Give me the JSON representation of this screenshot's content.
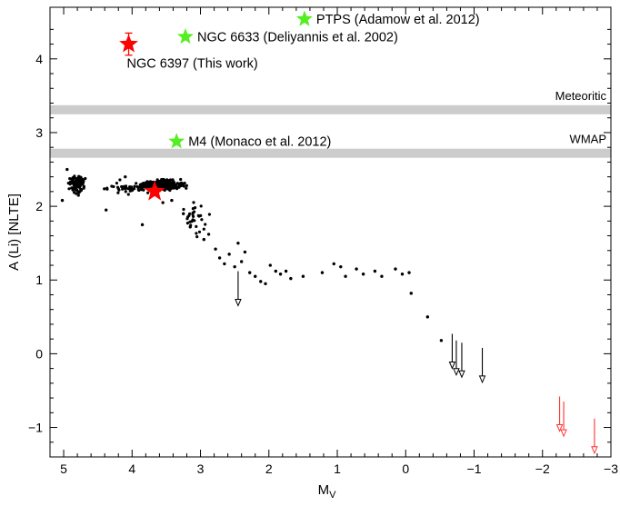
{
  "chart_data": {
    "type": "scatter",
    "xlabel": "M",
    "xlabel_sub": "V",
    "ylabel": "A (Li) [NLTE]",
    "xlim": [
      5.2,
      -3.0
    ],
    "ylim": [
      -1.4,
      4.7
    ],
    "x_inverted": true,
    "x_ticks": [
      5,
      4,
      3,
      2,
      1,
      0,
      -1,
      -2,
      -3
    ],
    "x_tick_labels": [
      "5",
      "4",
      "3",
      "2",
      "1",
      "0",
      "−1",
      "−2",
      "−3"
    ],
    "y_ticks": [
      -1,
      0,
      1,
      2,
      3,
      4
    ],
    "y_tick_labels": [
      "−1",
      "0",
      "1",
      "2",
      "3",
      "4"
    ],
    "reference_bands": [
      {
        "label": "Meteoritic",
        "y": 3.31,
        "color": "#cccccc"
      },
      {
        "label": "WMAP",
        "y": 2.72,
        "color": "#cccccc"
      }
    ],
    "highlight_points": [
      {
        "label": "NGC 6397 (This work)",
        "x": 4.05,
        "y": 4.2,
        "y_err": 0.15,
        "color": "#ff0000"
      },
      {
        "label": "NGC 6633 (Deliyannis et al. 2002)",
        "x": 3.22,
        "y": 4.3,
        "color": "#55ee22"
      },
      {
        "label": "PTPS (Adamow et al. 2012)",
        "x": 1.48,
        "y": 4.54,
        "color": "#55ee22"
      },
      {
        "label": "M4 (Monaco et al. 2012)",
        "x": 3.35,
        "y": 2.88,
        "color": "#55ee22"
      }
    ],
    "mean_point": {
      "x": 3.67,
      "y": 2.2,
      "color": "#ff0000"
    },
    "upper_limits": [
      {
        "x": 2.45,
        "y": 1.12,
        "color": "#000000"
      },
      {
        "x": -0.68,
        "y": 0.27,
        "color": "#000000"
      },
      {
        "x": -0.74,
        "y": 0.18,
        "color": "#000000"
      },
      {
        "x": -0.82,
        "y": 0.15,
        "color": "#000000"
      },
      {
        "x": -1.12,
        "y": 0.08,
        "color": "#000000"
      },
      {
        "x": -2.25,
        "y": -0.58,
        "color": "#ff3333"
      },
      {
        "x": -2.31,
        "y": -0.65,
        "color": "#ff3333"
      },
      {
        "x": -2.76,
        "y": -0.88,
        "color": "#ff3333"
      }
    ],
    "isolated_points": [
      [
        2.78,
        1.42
      ],
      [
        2.72,
        1.3
      ],
      [
        2.65,
        1.22
      ],
      [
        2.58,
        1.35
      ],
      [
        2.5,
        1.18
      ],
      [
        2.4,
        1.25
      ],
      [
        2.28,
        1.1
      ],
      [
        2.2,
        1.05
      ],
      [
        2.12,
        0.98
      ],
      [
        2.05,
        0.95
      ],
      [
        1.98,
        1.2
      ],
      [
        1.9,
        1.12
      ],
      [
        1.83,
        1.08
      ],
      [
        1.75,
        1.12
      ],
      [
        1.68,
        1.02
      ],
      [
        1.5,
        1.05
      ],
      [
        1.22,
        1.1
      ],
      [
        1.05,
        1.22
      ],
      [
        0.95,
        1.18
      ],
      [
        0.88,
        1.05
      ],
      [
        0.72,
        1.15
      ],
      [
        0.62,
        1.08
      ],
      [
        0.45,
        1.12
      ],
      [
        0.35,
        1.05
      ],
      [
        0.15,
        1.15
      ],
      [
        0.05,
        1.08
      ],
      [
        -0.05,
        1.1
      ],
      [
        -0.08,
        0.82
      ],
      [
        -0.32,
        0.5
      ],
      [
        -0.52,
        0.18
      ],
      [
        2.45,
        1.5
      ],
      [
        2.35,
        1.38
      ],
      [
        2.95,
        1.55
      ],
      [
        2.88,
        1.62
      ],
      [
        3.15,
        1.72
      ],
      [
        3.85,
        1.75
      ],
      [
        4.38,
        1.95
      ],
      [
        3.42,
        2.08
      ],
      [
        3.55,
        2.05
      ],
      [
        4.1,
        2.4
      ],
      [
        4.95,
        2.5
      ],
      [
        5.02,
        2.08
      ],
      [
        3.25,
        1.9
      ]
    ]
  }
}
